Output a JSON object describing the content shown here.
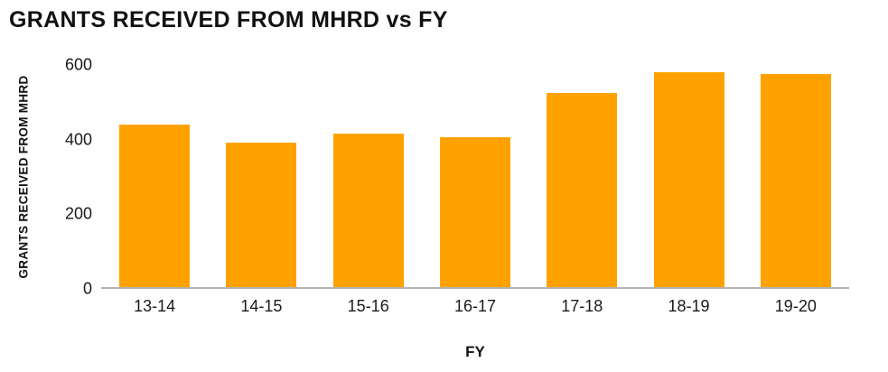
{
  "chart_data": {
    "type": "bar",
    "title": "GRANTS RECEIVED FROM MHRD vs FY",
    "xlabel": "FY",
    "ylabel": "GRANTS RECEIVED FROM MHRD",
    "categories": [
      "13-14",
      "14-15",
      "15-16",
      "16-17",
      "17-18",
      "18-19",
      "19-20"
    ],
    "values": [
      440,
      390,
      415,
      405,
      525,
      580,
      575
    ],
    "ylim": [
      0,
      600
    ],
    "yticks": [
      0,
      200,
      400,
      600
    ],
    "bar_color": "#FFA200",
    "grid": false,
    "legend": "none",
    "background": "#ffffff"
  }
}
